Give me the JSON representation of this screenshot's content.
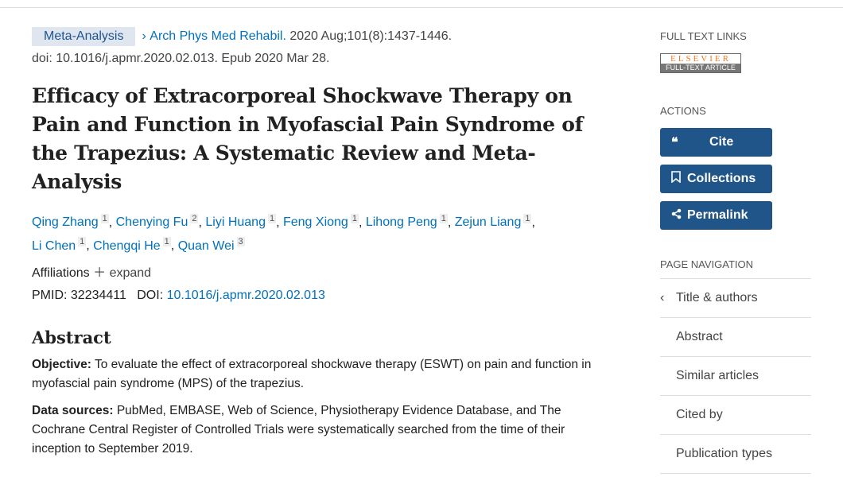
{
  "citation": {
    "type": "Meta-Analysis",
    "journal": "Arch Phys Med Rehabil.",
    "date": "2020 Aug;101(8):1437-1446.",
    "doi_line": "doi: 10.1016/j.apmr.2020.02.013. Epub 2020 Mar 28."
  },
  "title": "Efficacy of Extracorporeal Shockwave Therapy on Pain and Function in Myofascial Pain Syndrome of the Trapezius: A Systematic Review and Meta-Analysis",
  "authors": [
    {
      "name": "Qing Zhang",
      "aff": "1"
    },
    {
      "name": "Chenying Fu",
      "aff": "2"
    },
    {
      "name": "Liyi Huang",
      "aff": "1"
    },
    {
      "name": "Feng Xiong",
      "aff": "1"
    },
    {
      "name": "Lihong Peng",
      "aff": "1"
    },
    {
      "name": "Zejun Liang",
      "aff": "1"
    },
    {
      "name": "Li Chen",
      "aff": "1"
    },
    {
      "name": "Chengqi He",
      "aff": "1"
    },
    {
      "name": "Quan Wei",
      "aff": "3"
    }
  ],
  "affiliations_label": "Affiliations",
  "expand_label": "expand",
  "pmid_label": "PMID:",
  "pmid": "32234411",
  "doi_label": "DOI:",
  "doi": "10.1016/j.apmr.2020.02.013",
  "abstract": {
    "heading": "Abstract",
    "objective_label": "Objective:",
    "objective": "To evaluate the effect of extracorporeal shockwave therapy (ESWT) on pain and function in myofascial pain syndrome (MPS) of the trapezius.",
    "sources_label": "Data sources:",
    "sources": "PubMed, EMBASE, Web of Science, Physiotherapy Evidence Database, and The Cochrane Central Register of Controlled Trials were systematically searched from the time of their inception to September 2019."
  },
  "sidebar": {
    "full_text_heading": "FULL TEXT LINKS",
    "elsevier_logo": "ELSEVIER FULL-TEXT ARTICLE",
    "actions_heading": "ACTIONS",
    "cite": "Cite",
    "collections": "Collections",
    "permalink": "Permalink",
    "page_nav_heading": "PAGE NAVIGATION",
    "nav": [
      "Title & authors",
      "Abstract",
      "Similar articles",
      "Cited by",
      "Publication types"
    ]
  },
  "colors": {
    "link": "#0071bc",
    "button": "#20558a",
    "badge_bg": "#dfe6ef"
  }
}
